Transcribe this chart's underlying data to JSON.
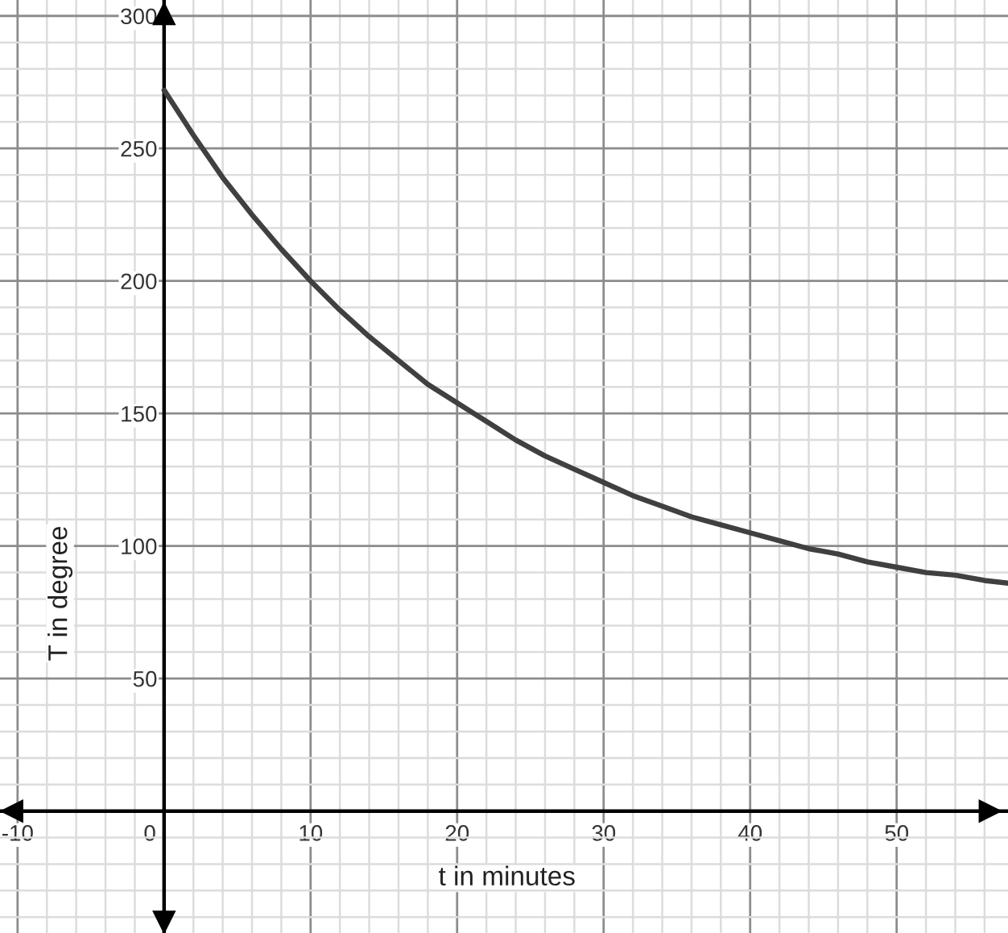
{
  "chart_data": {
    "type": "line",
    "xlabel": "t in minutes",
    "ylabel": "T in degree",
    "x": [
      0,
      2,
      4,
      6,
      8,
      10,
      12,
      14,
      16,
      18,
      20,
      22,
      24,
      26,
      28,
      30,
      32,
      34,
      36,
      38,
      40,
      42,
      44,
      46,
      48,
      50,
      52,
      54,
      56,
      57.6
    ],
    "series": [
      {
        "color": "#404040",
        "values": [
          272,
          255,
          239,
          225,
          212,
          200,
          189,
          179,
          170,
          161,
          154,
          147,
          140,
          134,
          129,
          124,
          119,
          115,
          111,
          108,
          105,
          102,
          99,
          97,
          94,
          92,
          90,
          89,
          87,
          86
        ]
      }
    ],
    "xlim": [
      -11.2,
      57.6
    ],
    "ylim": [
      -46,
      306
    ],
    "xticks": [
      -10,
      0,
      10,
      20,
      30,
      40,
      50
    ],
    "yticks": [
      50,
      100,
      150,
      200,
      250,
      300
    ],
    "grid": true,
    "marker": "none",
    "line_style": "solid"
  }
}
